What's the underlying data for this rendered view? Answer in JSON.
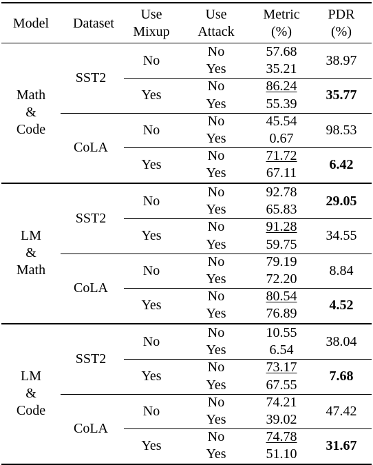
{
  "headers": {
    "model": "Model",
    "dataset": "Dataset",
    "mixup": [
      "Use",
      "Mixup"
    ],
    "attack": [
      "Use",
      "Attack"
    ],
    "metric": [
      "Metric",
      "(%)"
    ],
    "pdr": [
      "PDR",
      "(%)"
    ]
  },
  "groups": [
    {
      "model": [
        "Math",
        "&",
        "Code"
      ],
      "datasets": [
        {
          "name": "SST2",
          "blocks": [
            {
              "mixup": "No",
              "rows": [
                {
                  "attack": "No",
                  "metric": "57.68"
                },
                {
                  "attack": "Yes",
                  "metric": "35.21"
                }
              ],
              "pdr": "38.97",
              "pdr_bold": false,
              "metric_underline": false
            },
            {
              "mixup": "Yes",
              "rows": [
                {
                  "attack": "No",
                  "metric": "86.24"
                },
                {
                  "attack": "Yes",
                  "metric": "55.39"
                }
              ],
              "pdr": "35.77",
              "pdr_bold": true,
              "metric_underline": true
            }
          ]
        },
        {
          "name": "CoLA",
          "blocks": [
            {
              "mixup": "No",
              "rows": [
                {
                  "attack": "No",
                  "metric": "45.54"
                },
                {
                  "attack": "Yes",
                  "metric": "0.67"
                }
              ],
              "pdr": "98.53",
              "pdr_bold": false,
              "metric_underline": false
            },
            {
              "mixup": "Yes",
              "rows": [
                {
                  "attack": "No",
                  "metric": "71.72"
                },
                {
                  "attack": "Yes",
                  "metric": "67.11"
                }
              ],
              "pdr": "6.42",
              "pdr_bold": true,
              "metric_underline": true
            }
          ]
        }
      ]
    },
    {
      "model": [
        "LM",
        "&",
        "Math"
      ],
      "datasets": [
        {
          "name": "SST2",
          "blocks": [
            {
              "mixup": "No",
              "rows": [
                {
                  "attack": "No",
                  "metric": "92.78"
                },
                {
                  "attack": "Yes",
                  "metric": "65.83"
                }
              ],
              "pdr": "29.05",
              "pdr_bold": true,
              "metric_underline": false
            },
            {
              "mixup": "Yes",
              "rows": [
                {
                  "attack": "No",
                  "metric": "91.28"
                },
                {
                  "attack": "Yes",
                  "metric": "59.75"
                }
              ],
              "pdr": "34.55",
              "pdr_bold": false,
              "metric_underline": true
            }
          ]
        },
        {
          "name": "CoLA",
          "blocks": [
            {
              "mixup": "No",
              "rows": [
                {
                  "attack": "No",
                  "metric": "79.19"
                },
                {
                  "attack": "Yes",
                  "metric": "72.20"
                }
              ],
              "pdr": "8.84",
              "pdr_bold": false,
              "metric_underline": false
            },
            {
              "mixup": "Yes",
              "rows": [
                {
                  "attack": "No",
                  "metric": "80.54"
                },
                {
                  "attack": "Yes",
                  "metric": "76.89"
                }
              ],
              "pdr": "4.52",
              "pdr_bold": true,
              "metric_underline": true
            }
          ]
        }
      ]
    },
    {
      "model": [
        "LM",
        "&",
        "Code"
      ],
      "datasets": [
        {
          "name": "SST2",
          "blocks": [
            {
              "mixup": "No",
              "rows": [
                {
                  "attack": "No",
                  "metric": "10.55"
                },
                {
                  "attack": "Yes",
                  "metric": "6.54"
                }
              ],
              "pdr": "38.04",
              "pdr_bold": false,
              "metric_underline": false
            },
            {
              "mixup": "Yes",
              "rows": [
                {
                  "attack": "No",
                  "metric": "73.17"
                },
                {
                  "attack": "Yes",
                  "metric": "67.55"
                }
              ],
              "pdr": "7.68",
              "pdr_bold": true,
              "metric_underline": true
            }
          ]
        },
        {
          "name": "CoLA",
          "blocks": [
            {
              "mixup": "No",
              "rows": [
                {
                  "attack": "No",
                  "metric": "74.21"
                },
                {
                  "attack": "Yes",
                  "metric": "39.02"
                }
              ],
              "pdr": "47.42",
              "pdr_bold": false,
              "metric_underline": false
            },
            {
              "mixup": "Yes",
              "rows": [
                {
                  "attack": "No",
                  "metric": "74.78"
                },
                {
                  "attack": "Yes",
                  "metric": "51.10"
                }
              ],
              "pdr": "31.67",
              "pdr_bold": true,
              "metric_underline": true
            }
          ]
        }
      ]
    }
  ]
}
